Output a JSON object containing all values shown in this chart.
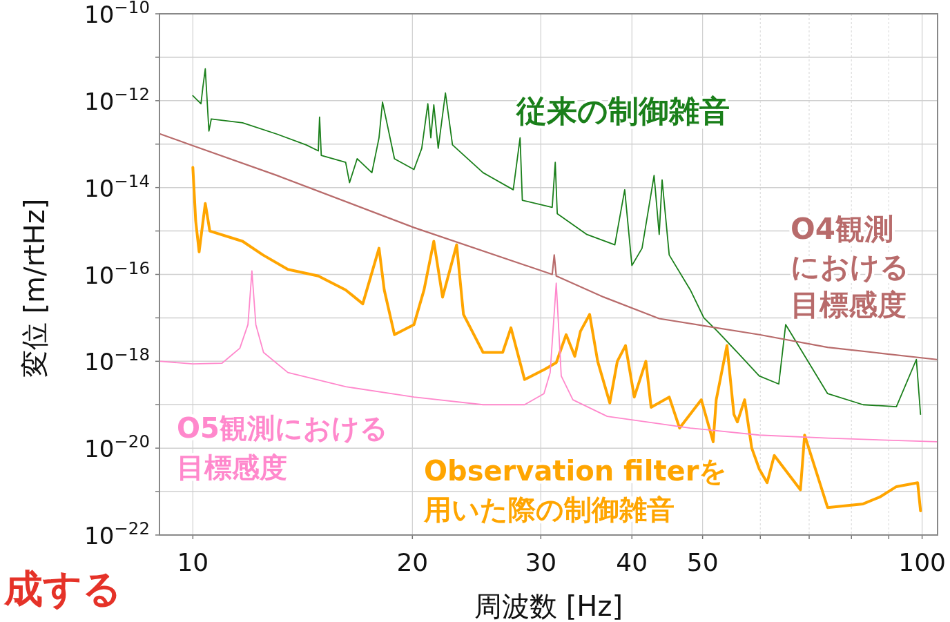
{
  "chart_data": {
    "type": "line",
    "xlabel": "周波数 [Hz]",
    "ylabel": "変位 [m/rtHz]",
    "log": "xy",
    "grid": true,
    "marker": "none",
    "line_style": "solid",
    "xlim": [
      9,
      105
    ],
    "ylim": [
      1e-22,
      1e-10
    ],
    "xticks": [
      10,
      20,
      30,
      40,
      50,
      {
        "value": 60,
        "label": null
      },
      {
        "value": 70,
        "label": null
      },
      {
        "value": 80,
        "label": null
      },
      {
        "value": 90,
        "label": null
      },
      100
    ],
    "yticks": [
      {
        "value": 1e-22,
        "label": "10$^{−22}$"
      },
      {
        "value": 1e-21,
        "label": null
      },
      {
        "value": 1e-20,
        "label": "10$^{−20}$"
      },
      {
        "value": 1e-19,
        "label": null
      },
      {
        "value": 1e-18,
        "label": "10$^{−18}$"
      },
      {
        "value": 1e-17,
        "label": null
      },
      {
        "value": 1e-16,
        "label": "10$^{−16}$"
      },
      {
        "value": 1e-15,
        "label": null
      },
      {
        "value": 1e-14,
        "label": "10$^{−14}$"
      },
      {
        "value": 1e-13,
        "label": null
      },
      {
        "value": 1e-12,
        "label": "10$^{−12}$"
      },
      {
        "value": 1e-11,
        "label": null
      },
      {
        "value": 1e-10,
        "label": "10$^{−10}$"
      }
    ],
    "series": [
      {
        "name": "従来の制御雑音",
        "color": "#1a7f1a",
        "x": [
          10,
          10.26,
          10.32,
          10.4,
          10.52,
          10.6,
          11.7,
          13.04,
          14.3,
          14.86,
          14.92,
          15,
          16.2,
          16.4,
          16.8,
          17.6,
          18.0,
          18.2,
          18.9,
          20.1,
          20.6,
          21.0,
          21.2,
          21.4,
          21.7,
          22.2,
          22.7,
          25.0,
          27.5,
          28.1,
          28.3,
          31.1,
          31.4,
          31.6,
          34.7,
          37.9,
          39.1,
          40.0,
          41.3,
          42.9,
          43.6,
          44.0,
          45.0,
          48.1,
          50.2,
          52.4,
          55.8,
          59.8,
          63.6,
          65,
          74.2,
          83.0,
          92.2,
          98.2,
          99.5
        ],
        "values": [
          1.3e-12,
          8.5e-13,
          2e-12,
          5.4e-12,
          2e-13,
          3.8e-13,
          3.1e-13,
          1.7e-13,
          9.6e-14,
          7e-14,
          4.2e-13,
          5.5e-14,
          3.8e-14,
          1.3e-14,
          4.6e-14,
          2.2e-14,
          1.4e-13,
          9.3e-13,
          4.6e-14,
          2.6e-14,
          8e-14,
          8.5e-13,
          1.4e-13,
          8e-13,
          8e-14,
          1.5e-12,
          9.6e-14,
          2.2e-14,
          8.9e-15,
          1.4e-13,
          5.1e-15,
          3.5e-15,
          3.8e-14,
          2.5e-15,
          8.3e-16,
          4.8e-16,
          8.9e-15,
          1.6e-16,
          4e-16,
          1.9e-14,
          8.3e-16,
          1.5e-14,
          2.8e-16,
          4.4e-17,
          1e-17,
          4.9e-18,
          1.6e-18,
          4.6e-19,
          3e-19,
          7e-18,
          1.8e-19,
          1e-19,
          9e-20,
          1.1e-18,
          6e-20
        ]
      },
      {
        "name": "Observation filterを用いた際の制御雑音",
        "color": "#ffa500",
        "x": [
          10,
          10.09,
          10.2,
          10.4,
          10.55,
          11.7,
          12.48,
          13.5,
          14.86,
          16.2,
          17.1,
          18.0,
          18.3,
          18.9,
          20.1,
          20.75,
          21.4,
          22.0,
          23.0,
          23.5,
          25.0,
          26.6,
          27.3,
          28.5,
          30.4,
          31.5,
          32.5,
          33.4,
          34.0,
          35.0,
          35.9,
          37.3,
          38.2,
          39.2,
          40.3,
          41.8,
          42.5,
          45.0,
          46.5,
          49.8,
          51.7,
          52.2,
          54.0,
          55.2,
          55.8,
          57.1,
          58.4,
          59.8,
          61.3,
          62.7,
          68.1,
          69.0,
          74.2,
          83.0,
          87.5,
          92.2,
          98.6,
          99.5
        ],
        "values": [
          2.9e-14,
          1.7e-15,
          3.3e-16,
          4.3e-15,
          1e-15,
          5.8e-16,
          2.8e-16,
          1.3e-16,
          9.2e-17,
          4.4e-17,
          2.1e-17,
          4e-16,
          4.4e-17,
          4.1e-18,
          7e-18,
          4.4e-17,
          5.8e-16,
          3e-17,
          4.8e-16,
          1.2e-17,
          1.6e-18,
          1.6e-18,
          5.9e-18,
          3.8e-19,
          6.6e-19,
          9.3e-19,
          4.1e-18,
          1.3e-18,
          4.9e-18,
          1.2e-17,
          1e-18,
          1.1e-19,
          1e-18,
          2.3e-18,
          1.5e-19,
          1e-18,
          8.7e-20,
          1.5e-19,
          2.9e-20,
          1.3e-19,
          1.4e-20,
          1.3e-19,
          2.3e-18,
          6e-20,
          4e-20,
          1.3e-19,
          1e-20,
          3.3e-21,
          1.6e-21,
          6.8e-21,
          1.1e-21,
          2e-20,
          4.3e-22,
          5.2e-22,
          7.5e-22,
          1.3e-21,
          1.6e-21,
          3.6e-22
        ]
      },
      {
        "name": "O4観測における目標感度",
        "color": "#b86b6b",
        "x": [
          9.03,
          10,
          13.04,
          20.1,
          31.1,
          31.3,
          31.5,
          36.6,
          43.6,
          59.8,
          74.2,
          104.7
        ],
        "values": [
          1.7e-13,
          9.2e-14,
          1.9e-14,
          1.2e-15,
          1e-16,
          2.8e-16,
          9.2e-17,
          3e-17,
          9.6e-18,
          4.1e-18,
          2.1e-18,
          1.1e-18
        ]
      },
      {
        "name": "O5観測における目標感度",
        "color": "#ff88cc",
        "x": [
          9.03,
          10,
          10.96,
          11.6,
          11.9,
          12.05,
          12.2,
          12.5,
          13.5,
          16.2,
          20.1,
          25.0,
          28.5,
          30.3,
          30.9,
          31.5,
          32.0,
          33.2,
          37.0,
          48.1,
          59.8,
          74.2,
          104.7
        ],
        "values": [
          1e-18,
          8.7e-19,
          9e-19,
          2e-18,
          7e-18,
          1.2e-16,
          7e-18,
          1.6e-18,
          5.5e-19,
          2.6e-19,
          1.5e-19,
          1e-19,
          1e-19,
          1.8e-19,
          5.5e-19,
          6.3e-17,
          4.6e-19,
          1.3e-19,
          5.4e-20,
          2.9e-20,
          2e-20,
          1.7e-20,
          1.4e-20
        ]
      }
    ],
    "annotations": [
      "成する"
    ]
  }
}
